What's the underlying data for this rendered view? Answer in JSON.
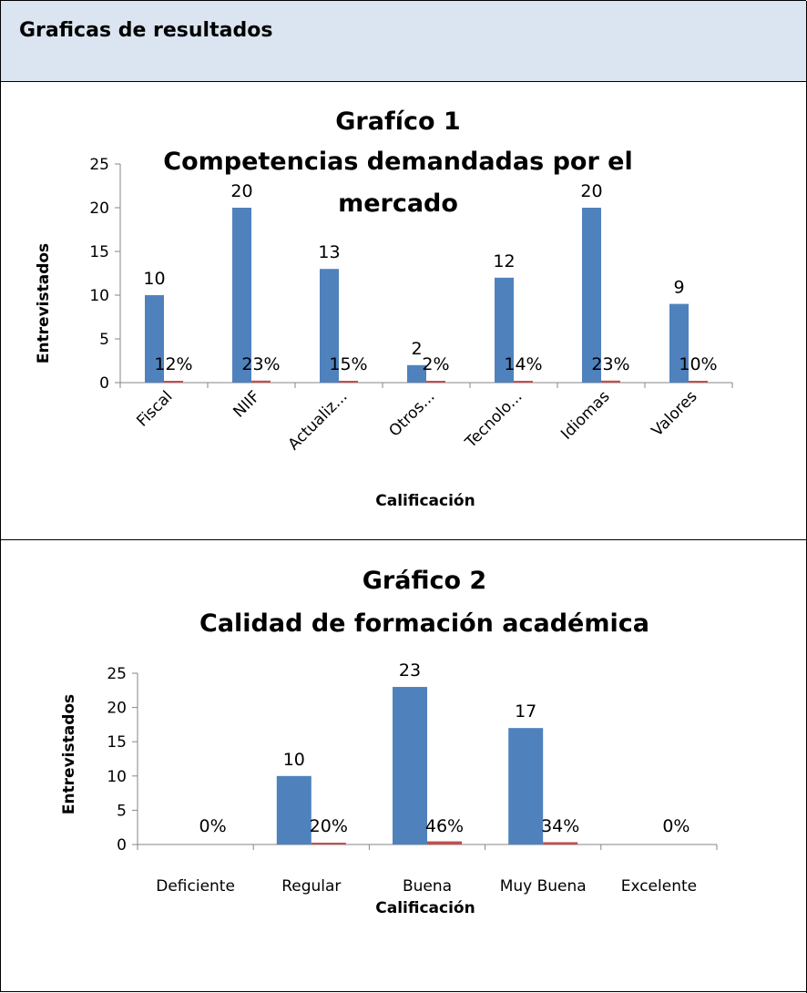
{
  "header": {
    "title": "Graficas de resultados"
  },
  "colors": {
    "primary_bar": "#4f81bd",
    "secondary_bar": "#c0504d",
    "axis": "#868686",
    "header_bg": "#dbe5f1"
  },
  "chart_data": [
    {
      "type": "bar",
      "title_line1": "Grafíco 1",
      "title_line2": "Competencias demandadas por el",
      "title_line3": "mercado",
      "xlabel": "Calificación",
      "ylabel": "Entrevistados",
      "ylim": [
        0,
        25
      ],
      "yticks": [
        "0",
        "5",
        "10",
        "15",
        "20",
        "25"
      ],
      "categories": [
        "Fiscal",
        "NIIF",
        "Actualiz...",
        "Otros...",
        "Tecnolo...",
        "Idiomas",
        "Valores"
      ],
      "series": [
        {
          "values": [
            10,
            20,
            13,
            2,
            12,
            20,
            9
          ],
          "labels": [
            "10",
            "20",
            "13",
            "2",
            "12",
            "20",
            "9"
          ]
        },
        {
          "values": [
            0.12,
            0.23,
            0.15,
            0.02,
            0.14,
            0.23,
            0.1
          ],
          "labels": [
            "12%",
            "23%",
            "15%",
            "2%",
            "14%",
            "23%",
            "10%"
          ]
        }
      ]
    },
    {
      "type": "bar",
      "title_line1": "Gráfico 2",
      "title_line2": "Calidad de formación académica",
      "xlabel": "Calificación",
      "ylabel": "Entrevistados",
      "ylim": [
        0,
        25
      ],
      "yticks": [
        "0",
        "5",
        "10",
        "15",
        "20",
        "25"
      ],
      "categories": [
        "Deficiente",
        "Regular",
        "Buena",
        "Muy Buena",
        "Excelente"
      ],
      "series": [
        {
          "values": [
            0,
            10,
            23,
            17,
            0
          ],
          "labels": [
            "",
            "10",
            "23",
            "17",
            ""
          ]
        },
        {
          "values": [
            0,
            0.2,
            0.46,
            0.34,
            0
          ],
          "labels": [
            "0%",
            "20%",
            "46%",
            "34%",
            "0%"
          ]
        }
      ]
    }
  ]
}
